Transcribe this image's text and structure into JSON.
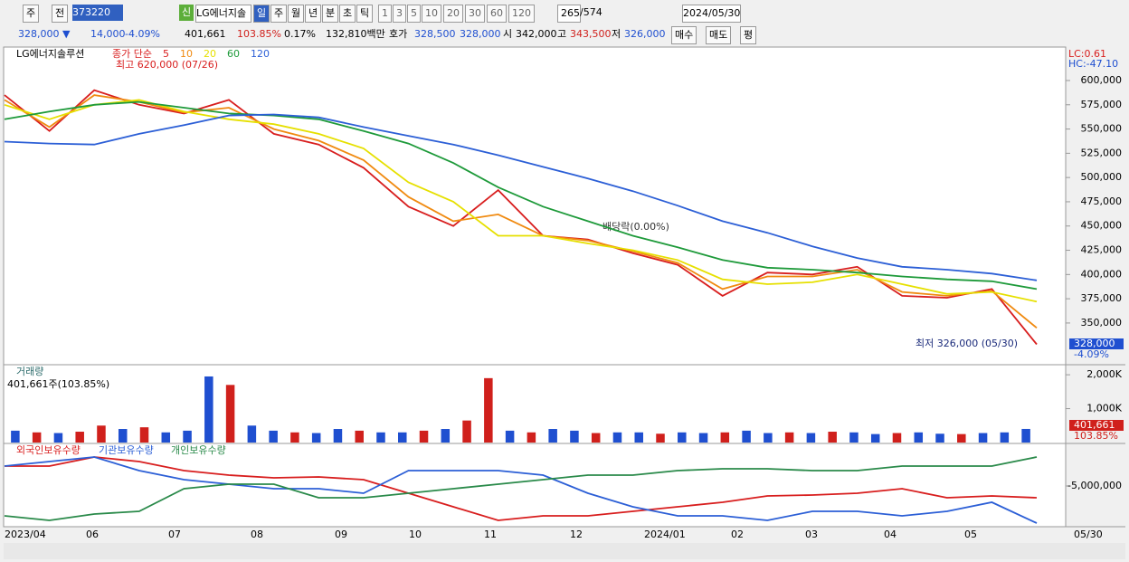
{
  "toolbar": {
    "market": "주",
    "prev": "전",
    "code": "373220",
    "badge": "신",
    "name": "LG에너지솔",
    "periods": [
      "일",
      "주",
      "월",
      "년",
      "분",
      "초",
      "틱"
    ],
    "intervals": [
      "1",
      "3",
      "5",
      "10",
      "20",
      "30",
      "60",
      "120"
    ],
    "count": "265",
    "total": "/574",
    "date": "2024/05/30"
  },
  "quote": {
    "price": "328,000 ▼",
    "change": "14,000",
    "rate": "-4.09%",
    "volume": "401,661",
    "volume_ratio": "103.85%",
    "turnover": "0.17%",
    "amount": "132,810백만",
    "ask_label": "호가",
    "ask": "328,500",
    "bid": "328,000",
    "open_label": "시",
    "open": "342,000",
    "high_label": "고",
    "high": "343,500",
    "low_label": "저",
    "low": "326,000",
    "buttons": [
      "매수",
      "매도",
      "평"
    ]
  },
  "chart_data": [
    {
      "type": "line",
      "title": "LG에너지솔루션",
      "legend_prefix": "종가 단순",
      "ylim": [
        307000,
        634500
      ],
      "yticks": [
        {
          "value": 600000,
          "label": "600,000"
        },
        {
          "value": 575000,
          "label": "575,000"
        },
        {
          "value": 550000,
          "label": "550,000"
        },
        {
          "value": 525000,
          "label": "525,000"
        },
        {
          "value": 500000,
          "label": "500,000"
        },
        {
          "value": 475000,
          "label": "475,000"
        },
        {
          "value": 450000,
          "label": "450,000"
        },
        {
          "value": 425000,
          "label": "425,000"
        },
        {
          "value": 400000,
          "label": "400,000"
        },
        {
          "value": 375000,
          "label": "375,000"
        },
        {
          "value": 350000,
          "label": "350,000"
        }
      ],
      "series": [
        {
          "name": "5",
          "color": "#d81e1e",
          "values": [
            585000,
            548000,
            590000,
            575000,
            566000,
            580000,
            545000,
            534000,
            510000,
            470000,
            450000,
            487000,
            440000,
            436000,
            422000,
            410000,
            378000,
            402000,
            400000,
            408000,
            378000,
            376000,
            385000,
            328000
          ]
        },
        {
          "name": "10",
          "color": "#f08a10",
          "values": [
            580000,
            552000,
            585000,
            578000,
            567000,
            572000,
            550000,
            538000,
            518000,
            480000,
            455000,
            462000,
            440000,
            435000,
            424000,
            412000,
            385000,
            398000,
            398000,
            405000,
            382000,
            378000,
            383000,
            345000
          ]
        },
        {
          "name": "20",
          "color": "#e6e000",
          "values": [
            575000,
            560000,
            575000,
            580000,
            568000,
            560000,
            555000,
            545000,
            530000,
            495000,
            475000,
            440000,
            440000,
            432000,
            425000,
            415000,
            395000,
            390000,
            392000,
            400000,
            390000,
            380000,
            382000,
            372000
          ]
        },
        {
          "name": "60",
          "color": "#1e9a3a",
          "values": [
            560000,
            568000,
            575000,
            578000,
            572000,
            566000,
            564000,
            560000,
            548000,
            535000,
            515000,
            490000,
            470000,
            455000,
            440000,
            428000,
            415000,
            407000,
            405000,
            402000,
            398000,
            395000,
            393000,
            385000
          ]
        },
        {
          "name": "120",
          "color": "#2c5fd6",
          "values": [
            537000,
            535000,
            534000,
            545000,
            554000,
            564000,
            565000,
            562000,
            552000,
            543000,
            534000,
            523000,
            511000,
            499000,
            486000,
            471000,
            455000,
            443000,
            429000,
            417000,
            408000,
            405000,
            401000,
            394000
          ]
        }
      ],
      "annotations": [
        "최고 620,000 (07/26)",
        "배당락(0.00%)",
        "최저 326,000 (05/30)"
      ],
      "lc": "LC:0.61",
      "hc": "HC:-47.10",
      "last_price": "328,000",
      "last_rate": "-4.09%"
    },
    {
      "type": "bar",
      "title": "거래량",
      "subtitle": "401,661주(103.85%)",
      "ylim": [
        0,
        2243000
      ],
      "yticks": [
        {
          "value": 2000000,
          "label": "2,000K"
        },
        {
          "value": 1000000,
          "label": "1,000K"
        }
      ],
      "values": [
        350000,
        300000,
        280000,
        320000,
        500000,
        400000,
        450000,
        300000,
        350000,
        1950000,
        1700000,
        500000,
        350000,
        300000,
        280000,
        400000,
        350000,
        300000,
        300000,
        350000,
        400000,
        650000,
        1900000,
        350000,
        300000,
        400000,
        350000,
        280000,
        300000,
        300000,
        260000,
        300000,
        280000,
        300000,
        350000,
        280000,
        300000,
        280000,
        320000,
        300000,
        250000,
        280000,
        300000,
        260000,
        250000,
        280000,
        300000,
        401661
      ],
      "colors": [
        "#1f4fd0",
        "#d0201c",
        "#1f4fd0",
        "#d0201c",
        "#d0201c",
        "#1f4fd0",
        "#d0201c",
        "#1f4fd0",
        "#1f4fd0",
        "#1f4fd0",
        "#d0201c",
        "#1f4fd0",
        "#1f4fd0",
        "#d0201c",
        "#1f4fd0",
        "#1f4fd0",
        "#d0201c",
        "#1f4fd0",
        "#1f4fd0",
        "#d0201c",
        "#1f4fd0",
        "#d0201c",
        "#d0201c",
        "#1f4fd0",
        "#d0201c",
        "#1f4fd0",
        "#1f4fd0",
        "#d0201c",
        "#1f4fd0",
        "#1f4fd0",
        "#d0201c",
        "#1f4fd0",
        "#1f4fd0",
        "#d0201c",
        "#1f4fd0",
        "#1f4fd0",
        "#d0201c",
        "#1f4fd0",
        "#d0201c",
        "#1f4fd0",
        "#1f4fd0",
        "#d0201c",
        "#1f4fd0",
        "#1f4fd0",
        "#d0201c",
        "#1f4fd0",
        "#1f4fd0",
        "#1f4fd0"
      ],
      "last_volume": "401,661",
      "last_ratio": "103.85%"
    },
    {
      "type": "line",
      "ylim": [
        -10000000,
        0
      ],
      "yticks": [
        {
          "value": -5000000,
          "label": "-5,000,000"
        }
      ],
      "series": [
        {
          "name": "외국인보유수량",
          "color": "#d81e1e",
          "values": [
            -2560000,
            -2560000,
            -1440000,
            -2000000,
            -3110000,
            -3670000,
            -4000000,
            -3890000,
            -4220000,
            -5890000,
            -7560000,
            -9220000,
            -8670000,
            -8670000,
            -8110000,
            -7560000,
            -7000000,
            -6220000,
            -6110000,
            -5890000,
            -5330000,
            -6440000,
            -6220000,
            -6440000
          ]
        },
        {
          "name": "기관보유수량",
          "color": "#2c5fd6",
          "values": [
            -2560000,
            -2000000,
            -1440000,
            -3110000,
            -4220000,
            -4780000,
            -5330000,
            -5330000,
            -5890000,
            -3110000,
            -3110000,
            -3110000,
            -3670000,
            -5890000,
            -7560000,
            -8670000,
            -8670000,
            -9220000,
            -8110000,
            -8110000,
            -8670000,
            -8110000,
            -7000000,
            -9560000
          ]
        },
        {
          "name": "개인보유수량",
          "color": "#2a8a4a",
          "values": [
            -8670000,
            -9220000,
            -8440000,
            -8110000,
            -5330000,
            -4780000,
            -4780000,
            -6440000,
            -6440000,
            -5890000,
            -5330000,
            -4780000,
            -4220000,
            -3670000,
            -3670000,
            -3110000,
            -2890000,
            -2890000,
            -3110000,
            -3110000,
            -2560000,
            -2560000,
            -2560000,
            -1440000
          ]
        }
      ]
    }
  ],
  "x_axis_labels": [
    "2023/04",
    "06",
    "07",
    "08",
    "09",
    "10",
    "11",
    "12",
    "2024/01",
    "02",
    "03",
    "04",
    "05",
    "05/30"
  ]
}
